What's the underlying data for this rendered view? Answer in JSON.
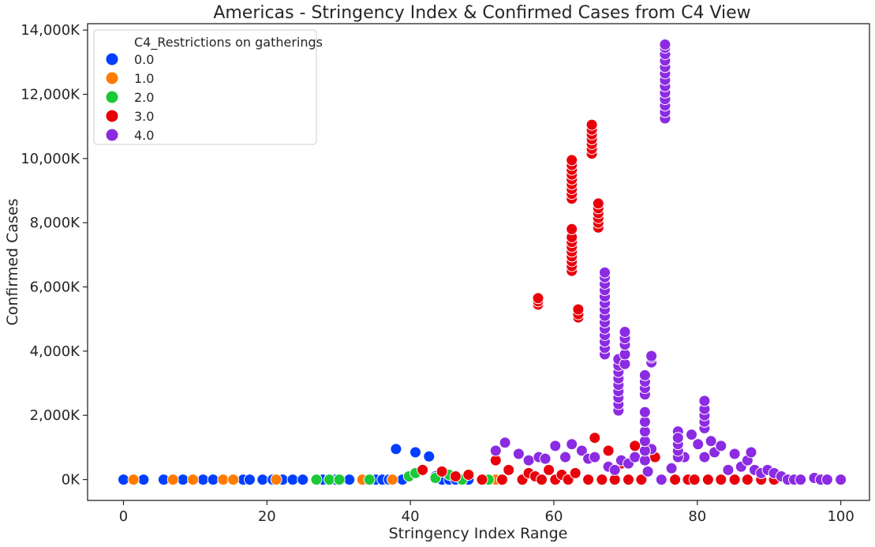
{
  "colors": {
    "0.0": "#023eff",
    "1.0": "#ff7c00",
    "2.0": "#1ac938",
    "3.0": "#e8000b",
    "4.0": "#8b2be2",
    "axes": "#262626",
    "background": "#ffffff"
  },
  "chart_data": {
    "type": "scatter",
    "title": "Americas - Stringency Index & Confirmed Cases from C4 View",
    "xlabel": "Stringency Index Range",
    "ylabel": "Confirmed Cases",
    "xlim": [
      -5,
      104
    ],
    "ylim": [
      -650,
      14200
    ],
    "y_unit": "K",
    "x_ticks": [
      0,
      20,
      40,
      60,
      80,
      100
    ],
    "x_tick_labels": [
      "0",
      "20",
      "40",
      "60",
      "80",
      "100"
    ],
    "y_ticks": [
      0,
      2000,
      4000,
      6000,
      8000,
      10000,
      12000,
      14000
    ],
    "y_tick_labels": [
      "0K",
      "2,000K",
      "4,000K",
      "6,000K",
      "8,000K",
      "10,000K",
      "12,000K",
      "14,000K"
    ],
    "grid": false,
    "legend": {
      "title": "C4_Restrictions on gatherings",
      "placement": "top-left",
      "entries": [
        "0.0",
        "1.0",
        "2.0",
        "3.0",
        "4.0"
      ]
    },
    "series": [
      {
        "name": "0.0",
        "points": [
          [
            0,
            0
          ],
          [
            2.8,
            0
          ],
          [
            5.6,
            0
          ],
          [
            8.3,
            0
          ],
          [
            11.1,
            0
          ],
          [
            12.5,
            0
          ],
          [
            13.9,
            0
          ],
          [
            16.7,
            0
          ],
          [
            17.6,
            0
          ],
          [
            19.4,
            0
          ],
          [
            20.8,
            0
          ],
          [
            22.2,
            0
          ],
          [
            23.6,
            0
          ],
          [
            25,
            0
          ],
          [
            27.8,
            0
          ],
          [
            29.6,
            0
          ],
          [
            31.5,
            0
          ],
          [
            33.3,
            0
          ],
          [
            35.2,
            0
          ],
          [
            36.1,
            0
          ],
          [
            37,
            0
          ],
          [
            38,
            950
          ],
          [
            38.9,
            0
          ],
          [
            40.7,
            850
          ],
          [
            42.6,
            720
          ],
          [
            43.5,
            100
          ],
          [
            44.4,
            0
          ],
          [
            45.4,
            0
          ],
          [
            46.3,
            0
          ],
          [
            48.1,
            0
          ],
          [
            50,
            0
          ]
        ]
      },
      {
        "name": "1.0",
        "points": [
          [
            1.4,
            0
          ],
          [
            6.9,
            0
          ],
          [
            9.7,
            0
          ],
          [
            13.9,
            0
          ],
          [
            15.3,
            0
          ],
          [
            21.3,
            0
          ],
          [
            33.3,
            0
          ],
          [
            37.5,
            0
          ],
          [
            51.9,
            0
          ]
        ]
      },
      {
        "name": "2.0",
        "points": [
          [
            26.9,
            0
          ],
          [
            28.7,
            0
          ],
          [
            30.1,
            0
          ],
          [
            34.3,
            0
          ],
          [
            39.8,
            100
          ],
          [
            40.7,
            200
          ],
          [
            43.5,
            50
          ],
          [
            45.4,
            150
          ],
          [
            47.2,
            0
          ],
          [
            50.9,
            0
          ]
        ]
      },
      {
        "name": "3.0",
        "points": [
          [
            41.7,
            300
          ],
          [
            44.4,
            250
          ],
          [
            46.3,
            100
          ],
          [
            48.1,
            150
          ],
          [
            50,
            0
          ],
          [
            51.9,
            600
          ],
          [
            52.8,
            0
          ],
          [
            53.7,
            300
          ],
          [
            55.6,
            0
          ],
          [
            56.5,
            200
          ],
          [
            57.4,
            100
          ],
          [
            58.3,
            0
          ],
          [
            59.3,
            300
          ],
          [
            60.2,
            0
          ],
          [
            61.1,
            150
          ],
          [
            62,
            0
          ],
          [
            63,
            200
          ],
          [
            64.8,
            0
          ],
          [
            65.7,
            1300
          ],
          [
            66.7,
            0
          ],
          [
            67.6,
            900
          ],
          [
            68.5,
            0
          ],
          [
            69.4,
            500
          ],
          [
            70.4,
            0
          ],
          [
            71.3,
            1050
          ],
          [
            72.2,
            0
          ],
          [
            73.1,
            250
          ],
          [
            74.1,
            700
          ],
          [
            75,
            0
          ],
          [
            76.9,
            0
          ],
          [
            78.7,
            0
          ],
          [
            79.6,
            0
          ],
          [
            81.5,
            0
          ],
          [
            83.3,
            0
          ],
          [
            85.2,
            0
          ],
          [
            87,
            0
          ],
          [
            88.9,
            0
          ],
          [
            90.7,
            0
          ],
          [
            92.6,
            0
          ],
          [
            57.8,
            5450
          ],
          [
            57.8,
            5550
          ],
          [
            57.8,
            5650
          ],
          [
            62.5,
            6500
          ],
          [
            62.5,
            6650
          ],
          [
            62.5,
            6800
          ],
          [
            62.5,
            6950
          ],
          [
            62.5,
            7100
          ],
          [
            62.5,
            7250
          ],
          [
            62.5,
            7400
          ],
          [
            62.5,
            7550
          ],
          [
            62.5,
            7800
          ],
          [
            62.5,
            8750
          ],
          [
            62.5,
            8900
          ],
          [
            62.5,
            9050
          ],
          [
            62.5,
            9200
          ],
          [
            62.5,
            9350
          ],
          [
            62.5,
            9500
          ],
          [
            62.5,
            9650
          ],
          [
            62.5,
            9800
          ],
          [
            62.5,
            9950
          ],
          [
            63.4,
            5050
          ],
          [
            63.4,
            5150
          ],
          [
            63.4,
            5300
          ],
          [
            65.3,
            10150
          ],
          [
            65.3,
            10300
          ],
          [
            65.3,
            10450
          ],
          [
            65.3,
            10600
          ],
          [
            65.3,
            10750
          ],
          [
            65.3,
            10900
          ],
          [
            65.3,
            11050
          ],
          [
            66.2,
            7850
          ],
          [
            66.2,
            8000
          ],
          [
            66.2,
            8150
          ],
          [
            66.2,
            8300
          ],
          [
            66.2,
            8450
          ],
          [
            66.2,
            8600
          ]
        ]
      },
      {
        "name": "4.0",
        "points": [
          [
            51.9,
            900
          ],
          [
            53.2,
            1150
          ],
          [
            55.1,
            800
          ],
          [
            56.5,
            600
          ],
          [
            57.9,
            700
          ],
          [
            58.8,
            650
          ],
          [
            60.2,
            1050
          ],
          [
            61.6,
            700
          ],
          [
            62.5,
            1100
          ],
          [
            63.9,
            900
          ],
          [
            64.8,
            650
          ],
          [
            65.7,
            700
          ],
          [
            67.6,
            400
          ],
          [
            68.5,
            300
          ],
          [
            69.4,
            600
          ],
          [
            70.4,
            500
          ],
          [
            71.3,
            700
          ],
          [
            73.1,
            250
          ],
          [
            73.6,
            950
          ],
          [
            75,
            0
          ],
          [
            76.4,
            350
          ],
          [
            77.3,
            1500
          ],
          [
            78.2,
            700
          ],
          [
            79.2,
            1400
          ],
          [
            80.1,
            1100
          ],
          [
            81,
            700
          ],
          [
            81.9,
            1200
          ],
          [
            82.4,
            850
          ],
          [
            83.3,
            1050
          ],
          [
            84.3,
            300
          ],
          [
            85.2,
            800
          ],
          [
            86.1,
            400
          ],
          [
            87,
            600
          ],
          [
            87.5,
            850
          ],
          [
            88,
            300
          ],
          [
            88.9,
            200
          ],
          [
            89.8,
            300
          ],
          [
            90.7,
            200
          ],
          [
            91.7,
            100
          ],
          [
            92.6,
            0
          ],
          [
            93.5,
            0
          ],
          [
            94.4,
            0
          ],
          [
            96.3,
            50
          ],
          [
            97.2,
            0
          ],
          [
            98.1,
            0
          ],
          [
            100,
            0
          ],
          [
            75.5,
            11250
          ],
          [
            75.5,
            11450
          ],
          [
            75.5,
            11650
          ],
          [
            75.5,
            11850
          ],
          [
            75.5,
            12050
          ],
          [
            75.5,
            12250
          ],
          [
            75.5,
            12450
          ],
          [
            75.5,
            12650
          ],
          [
            75.5,
            12850
          ],
          [
            75.5,
            13050
          ],
          [
            75.5,
            13250
          ],
          [
            75.5,
            13450
          ],
          [
            75.5,
            13550
          ],
          [
            67.1,
            3900
          ],
          [
            67.1,
            4100
          ],
          [
            67.1,
            4300
          ],
          [
            67.1,
            4500
          ],
          [
            67.1,
            4700
          ],
          [
            67.1,
            4900
          ],
          [
            67.1,
            5100
          ],
          [
            67.1,
            5300
          ],
          [
            67.1,
            5500
          ],
          [
            67.1,
            5700
          ],
          [
            67.1,
            5900
          ],
          [
            67.1,
            6100
          ],
          [
            67.1,
            6300
          ],
          [
            67.1,
            6450
          ],
          [
            69,
            2150
          ],
          [
            69,
            2350
          ],
          [
            69,
            2550
          ],
          [
            69,
            2750
          ],
          [
            69,
            2950
          ],
          [
            69,
            3150
          ],
          [
            69,
            3350
          ],
          [
            69,
            3550
          ],
          [
            69,
            3750
          ],
          [
            69.9,
            3600
          ],
          [
            69.9,
            3900
          ],
          [
            69.9,
            4200
          ],
          [
            69.9,
            4400
          ],
          [
            69.9,
            4600
          ],
          [
            72.7,
            600
          ],
          [
            72.7,
            900
          ],
          [
            72.7,
            1200
          ],
          [
            72.7,
            1500
          ],
          [
            72.7,
            1800
          ],
          [
            72.7,
            2100
          ],
          [
            72.7,
            2650
          ],
          [
            72.7,
            2850
          ],
          [
            72.7,
            3050
          ],
          [
            72.7,
            3250
          ],
          [
            73.6,
            3650
          ],
          [
            73.6,
            3800
          ],
          [
            73.6,
            3850
          ],
          [
            77.3,
            700
          ],
          [
            77.3,
            900
          ],
          [
            77.3,
            1100
          ],
          [
            77.3,
            1300
          ],
          [
            81,
            1600
          ],
          [
            81,
            1800
          ],
          [
            81,
            2000
          ],
          [
            81,
            2200
          ],
          [
            81,
            2450
          ]
        ]
      }
    ]
  }
}
